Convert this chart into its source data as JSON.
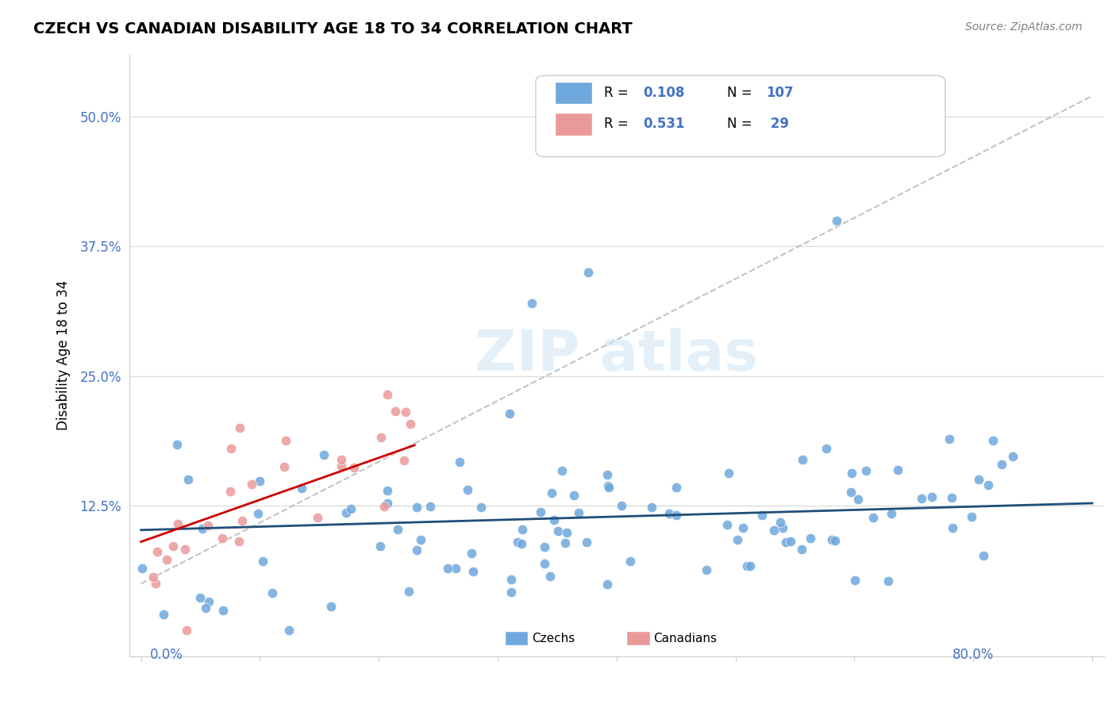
{
  "title": "CZECH VS CANADIAN DISABILITY AGE 18 TO 34 CORRELATION CHART",
  "source": "Source: ZipAtlas.com",
  "ylabel": "Disability Age 18 to 34",
  "ytick_labels": [
    "12.5%",
    "25.0%",
    "37.5%",
    "50.0%"
  ],
  "ytick_values": [
    0.125,
    0.25,
    0.375,
    0.5
  ],
  "xlim": [
    0.0,
    0.8
  ],
  "ylim": [
    -0.02,
    0.56
  ],
  "czech_R": 0.108,
  "czech_N": 107,
  "canadian_R": 0.531,
  "canadian_N": 29,
  "czech_color": "#6fa8dc",
  "canadian_color": "#ea9999",
  "czech_line_color": "#1f4e79",
  "canadian_line_color": "#cc0000",
  "diagonal_color": "#aaaaaa",
  "background_color": "#ffffff",
  "grid_color": "#dddddd",
  "tick_color": "#4472c4"
}
